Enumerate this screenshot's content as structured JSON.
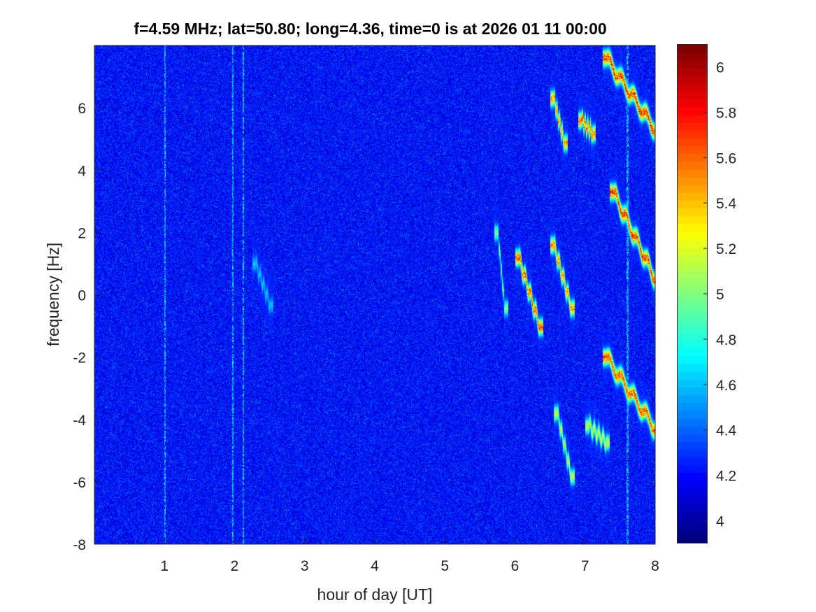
{
  "chart_data": {
    "type": "heatmap",
    "title": "f=4.59 MHz;  lat=50.80; long=4.36, time=0 is at 2026 01 11 00:00",
    "xlabel": "hour of day [UT]",
    "ylabel": "frequency [Hz]",
    "xlim": [
      0,
      8
    ],
    "ylim": [
      -8,
      8
    ],
    "x_ticks": [
      1,
      2,
      3,
      4,
      5,
      6,
      7,
      8
    ],
    "y_ticks": [
      -8,
      -6,
      -4,
      -2,
      0,
      2,
      4,
      6
    ],
    "colorbar": {
      "colormap": "jet",
      "clim": [
        3.9,
        6.1
      ],
      "ticks": [
        4,
        4.2,
        4.4,
        4.6,
        4.8,
        5,
        5.2,
        5.4,
        5.6,
        5.8,
        6
      ]
    },
    "background_level": 4.2,
    "features": [
      {
        "x_start": 7.3,
        "x_end": 8.0,
        "y_start": 7.6,
        "y_end": 5.3,
        "peak": 6.1
      },
      {
        "x_start": 7.4,
        "x_end": 8.0,
        "y_start": 3.3,
        "y_end": 0.5,
        "peak": 6.1
      },
      {
        "x_start": 7.3,
        "x_end": 8.0,
        "y_start": -2.0,
        "y_end": -4.3,
        "peak": 6.0
      },
      {
        "x_start": 6.05,
        "x_end": 6.35,
        "y_start": 1.2,
        "y_end": -1.0,
        "peak": 6.0
      },
      {
        "x_start": 5.75,
        "x_end": 5.85,
        "y_start": 2.0,
        "y_end": -0.4,
        "peak": 5.2
      },
      {
        "x_start": 6.55,
        "x_end": 6.8,
        "y_start": 1.6,
        "y_end": -0.4,
        "peak": 5.8
      },
      {
        "x_start": 6.55,
        "x_end": 6.7,
        "y_start": 6.3,
        "y_end": 4.9,
        "peak": 5.8
      },
      {
        "x_start": 6.95,
        "x_end": 7.1,
        "y_start": 5.6,
        "y_end": 5.2,
        "peak": 5.9
      },
      {
        "x_start": 6.6,
        "x_end": 6.8,
        "y_start": -3.8,
        "y_end": -5.8,
        "peak": 5.4
      },
      {
        "x_start": 7.05,
        "x_end": 7.3,
        "y_start": -4.2,
        "y_end": -4.7,
        "peak": 5.4
      },
      {
        "x_start": 2.3,
        "x_end": 2.5,
        "y_start": 1.0,
        "y_end": -0.3,
        "peak": 4.7
      }
    ],
    "vertical_streaks": [
      1.0,
      1.97,
      2.12,
      7.6
    ]
  }
}
